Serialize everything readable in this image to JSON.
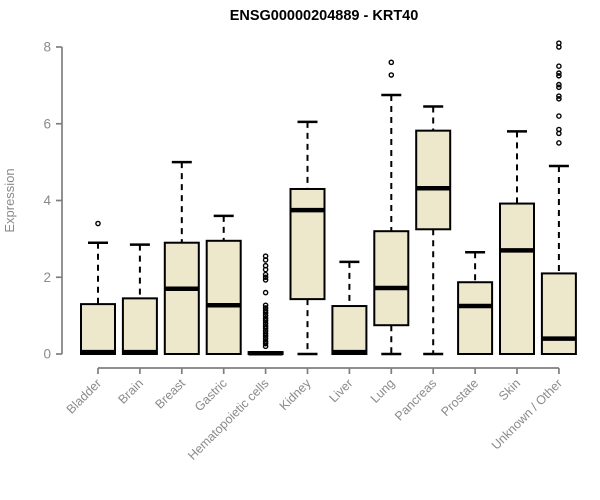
{
  "title": "ENSG00000204889 - KRT40",
  "colors": {
    "box_fill": "#EDE7CC",
    "box_stroke": "#000000",
    "median": "#000000",
    "whisker": "#000000",
    "axis": "#7f7f7f",
    "axis_text": "#8a8a8a",
    "title_text": "#000000",
    "background": "#ffffff"
  },
  "chart_data": {
    "type": "boxplot",
    "title": "ENSG00000204889 - KRT40",
    "xlabel": "",
    "ylabel": "Expression",
    "ylim": [
      0,
      8
    ],
    "yticks": [
      0,
      2,
      4,
      6,
      8
    ],
    "grid": false,
    "legend": "none",
    "categories": [
      "Bladder",
      "Brain",
      "Breast",
      "Gastric",
      "Hematopoietic cells",
      "Kidney",
      "Liver",
      "Lung",
      "Pancreas",
      "Prostate",
      "Skin",
      "Unknown / Other"
    ],
    "series": [
      {
        "name": "Bladder",
        "low": 0,
        "q1": 0,
        "median": 0.05,
        "q3": 1.3,
        "high": 2.9,
        "outliers": [
          3.4
        ]
      },
      {
        "name": "Brain",
        "low": 0,
        "q1": 0,
        "median": 0.05,
        "q3": 1.45,
        "high": 2.85,
        "outliers": []
      },
      {
        "name": "Breast",
        "low": 0,
        "q1": 0,
        "median": 1.7,
        "q3": 2.9,
        "high": 5.0,
        "outliers": []
      },
      {
        "name": "Gastric",
        "low": 0,
        "q1": 0,
        "median": 1.27,
        "q3": 2.95,
        "high": 3.6,
        "outliers": []
      },
      {
        "name": "Hematopoietic cells",
        "low": 0,
        "q1": 0,
        "median": 0.02,
        "q3": 0.05,
        "high": 0.05,
        "outliers": [
          0.2,
          0.27,
          0.33,
          0.4,
          0.47,
          0.53,
          0.6,
          0.67,
          0.73,
          0.8,
          0.87,
          0.93,
          1.0,
          1.07,
          1.13,
          1.2,
          1.27,
          1.6,
          1.93,
          2.0,
          2.07,
          2.2,
          2.3,
          2.45,
          2.55
        ]
      },
      {
        "name": "Kidney",
        "low": 0,
        "q1": 1.43,
        "median": 3.75,
        "q3": 4.3,
        "high": 6.05,
        "outliers": []
      },
      {
        "name": "Liver",
        "low": 0,
        "q1": 0,
        "median": 0.05,
        "q3": 1.25,
        "high": 2.4,
        "outliers": []
      },
      {
        "name": "Lung",
        "low": 0,
        "q1": 0.75,
        "median": 1.72,
        "q3": 3.2,
        "high": 6.75,
        "outliers": [
          7.27,
          7.6
        ]
      },
      {
        "name": "Pancreas",
        "low": 0,
        "q1": 3.25,
        "median": 4.32,
        "q3": 5.82,
        "high": 6.45,
        "outliers": []
      },
      {
        "name": "Prostate",
        "low": 0,
        "q1": 0,
        "median": 1.25,
        "q3": 1.87,
        "high": 2.65,
        "outliers": []
      },
      {
        "name": "Skin",
        "low": 0,
        "q1": 0,
        "median": 2.7,
        "q3": 3.92,
        "high": 5.8,
        "outliers": []
      },
      {
        "name": "Unknown / Other",
        "low": 0,
        "q1": 0,
        "median": 0.4,
        "q3": 2.1,
        "high": 4.9,
        "outliers": [
          5.5,
          5.75,
          5.85,
          6.2,
          6.65,
          6.72,
          6.95,
          7.02,
          7.25,
          7.32,
          7.5,
          8.0,
          8.1
        ]
      }
    ]
  }
}
